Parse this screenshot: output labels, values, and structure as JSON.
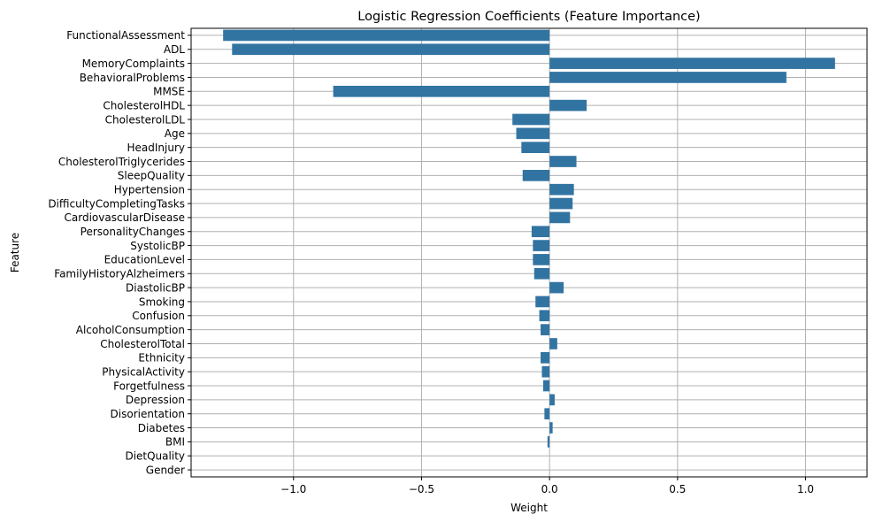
{
  "chart_data": {
    "type": "bar",
    "orientation": "horizontal",
    "title": "Logistic Regression Coefficients (Feature Importance)",
    "xlabel": "Weight",
    "ylabel": "Feature",
    "xlim": [
      -1.4,
      1.24
    ],
    "xticks": [
      -1.0,
      -0.5,
      0.0,
      0.5,
      1.0
    ],
    "xtick_labels": [
      "−1.0",
      "−0.5",
      "0.0",
      "0.5",
      "1.0"
    ],
    "grid": true,
    "bar_color": "#3274a1",
    "categories": [
      "FunctionalAssessment",
      "ADL",
      "MemoryComplaints",
      "BehavioralProblems",
      "MMSE",
      "CholesterolHDL",
      "CholesterolLDL",
      "Age",
      "HeadInjury",
      "CholesterolTriglycerides",
      "SleepQuality",
      "Hypertension",
      "DifficultyCompletingTasks",
      "CardiovascularDisease",
      "PersonalityChanges",
      "SystolicBP",
      "EducationLevel",
      "FamilyHistoryAlzheimers",
      "DiastolicBP",
      "Smoking",
      "Confusion",
      "AlcoholConsumption",
      "CholesterolTotal",
      "Ethnicity",
      "PhysicalActivity",
      "Forgetfulness",
      "Depression",
      "Disorientation",
      "Diabetes",
      "BMI",
      "DietQuality",
      "Gender"
    ],
    "values": [
      -1.275,
      -1.24,
      1.115,
      0.925,
      -0.845,
      0.145,
      -0.145,
      -0.13,
      -0.11,
      0.105,
      -0.105,
      0.095,
      0.09,
      0.08,
      -0.07,
      -0.065,
      -0.065,
      -0.06,
      0.055,
      -0.055,
      -0.04,
      -0.035,
      0.03,
      -0.035,
      -0.03,
      -0.025,
      0.02,
      -0.02,
      0.012,
      -0.008,
      0.0,
      0.0
    ]
  }
}
